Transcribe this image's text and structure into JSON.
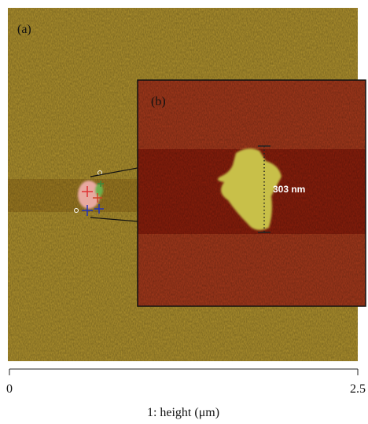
{
  "panels": {
    "a": {
      "label": "(a)"
    },
    "b": {
      "label": "(b)",
      "annotation": "303 nm"
    }
  },
  "axis": {
    "ticks": [
      0,
      2.5
    ],
    "label": "1: height (μm)"
  }
}
